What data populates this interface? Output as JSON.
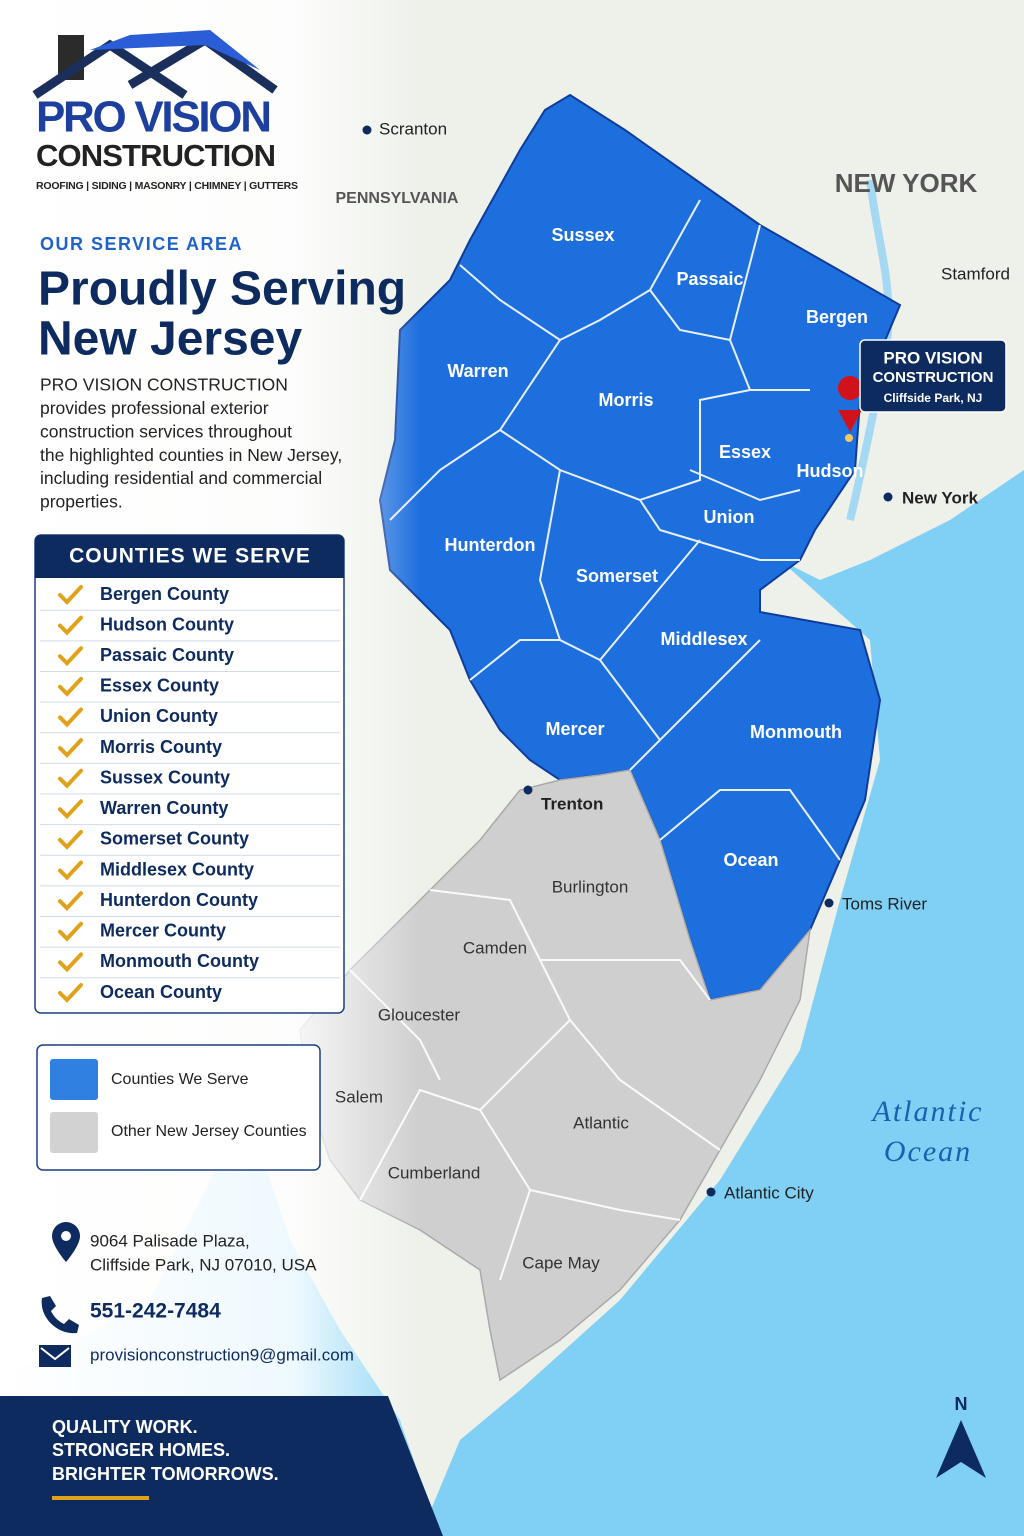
{
  "logo": {
    "name": "PRO VISION",
    "sub": "CONSTRUCTION",
    "services": "ROOFING | SIDING | MASONRY | CHIMNEY | GUTTERS"
  },
  "intro": {
    "eyebrow": "OUR SERVICE AREA",
    "title": [
      "Proudly Serving",
      "New Jersey"
    ],
    "body": [
      "PRO VISION CONSTRUCTION",
      "provides professional exterior",
      "construction services throughout",
      "the highlighted counties in New Jersey,",
      "including residential and commercial",
      "properties."
    ]
  },
  "counties_panel": {
    "title": "COUNTIES WE SERVE",
    "items": [
      "Bergen County",
      "Hudson County",
      "Passaic County",
      "Essex County",
      "Union County",
      "Morris County",
      "Sussex County",
      "Warren County",
      "Somerset County",
      "Middlesex County",
      "Hunterdon County",
      "Mercer County",
      "Monmouth County",
      "Ocean County"
    ]
  },
  "legend": [
    "Counties We Serve",
    "Other New Jersey Counties"
  ],
  "map": {
    "served": [
      "Sussex",
      "Passaic",
      "Bergen",
      "Warren",
      "Morris",
      "Essex",
      "Hudson",
      "Union",
      "Hunterdon",
      "Somerset",
      "Middlesex",
      "Mercer",
      "Monmouth",
      "Ocean"
    ],
    "other": [
      "Burlington",
      "Camden",
      "Gloucester",
      "Salem",
      "Atlantic",
      "Cumberland",
      "Cape May"
    ],
    "places": [
      "Scranton",
      "Stamford",
      "New York",
      "Trenton",
      "Toms River",
      "Atlantic City"
    ],
    "regions": [
      "PENNSYLVANIA",
      "NEW YORK"
    ],
    "ocean": [
      "Atlantic",
      "Ocean"
    ],
    "callout": {
      "name": "PRO VISION",
      "sub": "CONSTRUCTION",
      "location": "Cliffside Park, NJ"
    },
    "compass": "N"
  },
  "contact": {
    "address": [
      "9064 Palisade Plaza,",
      "Cliffside Park, NJ 07010, USA"
    ],
    "phone": "551-242-7484",
    "email": "provisionconstruction9@gmail.com"
  },
  "footer": [
    "QUALITY WORK.",
    "STRONGER HOMES.",
    "BRIGHTER TOMORROWS."
  ]
}
